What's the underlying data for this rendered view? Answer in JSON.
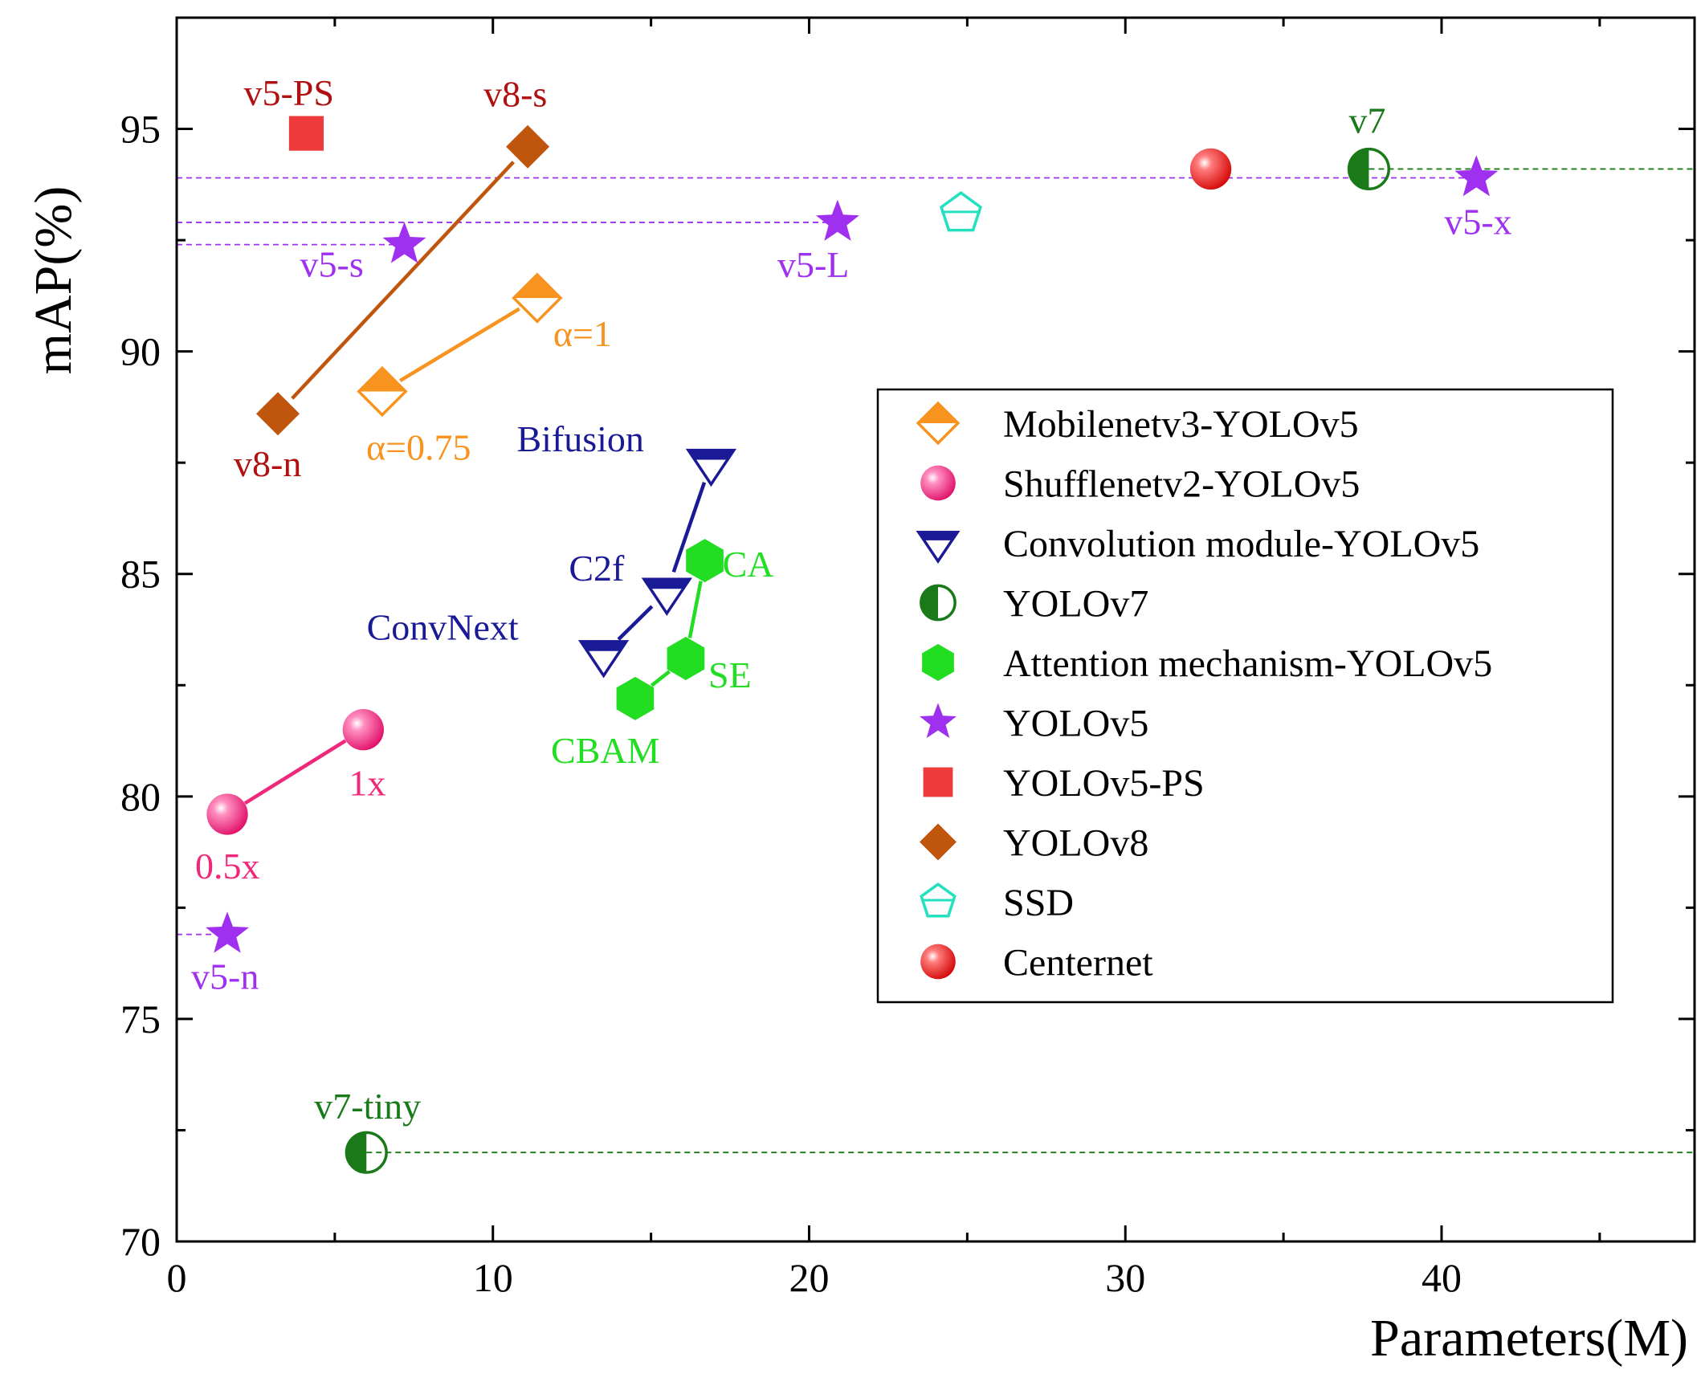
{
  "chart_data": {
    "type": "scatter",
    "title": "",
    "xlabel": "Parameters(M)",
    "ylabel": "mAP(%)",
    "xlim": [
      0,
      48
    ],
    "ylim": [
      70,
      97.5
    ],
    "x_ticks": [
      0,
      10,
      20,
      30,
      40
    ],
    "y_ticks": [
      70,
      75,
      80,
      85,
      90,
      95
    ],
    "grid": false,
    "legend_position": "center-right",
    "colors": {
      "orange": "#f7931e",
      "pink": "#f0287a",
      "navy": "#1a1a96",
      "darkgreen": "#1a7a1a",
      "green": "#22dd22",
      "purple": "#a030f0",
      "red": "#ef3b3b",
      "brown": "#c0560e",
      "cyan": "#22e0c0",
      "centernet": "#e01818",
      "darkred": "#b01010"
    },
    "series": [
      {
        "name": "Mobilenetv3-YOLOv5",
        "marker": "half-diamond",
        "color": "#f7931e",
        "connected": true,
        "points": [
          {
            "x": 6.5,
            "y": 89.1,
            "label": "α=0.75"
          },
          {
            "x": 11.4,
            "y": 91.2,
            "label": "α=1"
          }
        ]
      },
      {
        "name": "Shufflenetv2-YOLOv5",
        "marker": "sphere",
        "color": "#f0287a",
        "connected": true,
        "points": [
          {
            "x": 1.6,
            "y": 79.6,
            "label": "0.5x"
          },
          {
            "x": 5.9,
            "y": 81.5,
            "label": "1x"
          }
        ]
      },
      {
        "name": "Convolution module-YOLOv5",
        "marker": "half-triangle-down",
        "color": "#1a1a96",
        "connected": true,
        "points": [
          {
            "x": 13.5,
            "y": 83.2,
            "label": "ConvNext"
          },
          {
            "x": 15.5,
            "y": 84.6,
            "label": "C2f"
          },
          {
            "x": 16.9,
            "y": 87.5,
            "label": "Bifusion"
          }
        ]
      },
      {
        "name": "YOLOv7",
        "marker": "half-circle",
        "color": "#1a7a1a",
        "connected": false,
        "points": [
          {
            "x": 6.0,
            "y": 72.0,
            "label": "v7-tiny"
          },
          {
            "x": 37.7,
            "y": 94.1,
            "label": "v7"
          }
        ]
      },
      {
        "name": "Attention mechanism-YOLOv5",
        "marker": "hexagon",
        "color": "#22dd22",
        "connected": true,
        "points": [
          {
            "x": 14.5,
            "y": 82.2,
            "label": "CBAM"
          },
          {
            "x": 16.1,
            "y": 83.1,
            "label": "SE"
          },
          {
            "x": 16.7,
            "y": 85.3,
            "label": "CA"
          }
        ]
      },
      {
        "name": "YOLOv5",
        "marker": "star",
        "color": "#a030f0",
        "connected": false,
        "points": [
          {
            "x": 1.6,
            "y": 76.9,
            "label": "v5-n"
          },
          {
            "x": 7.2,
            "y": 92.4,
            "label": "v5-s"
          },
          {
            "x": 20.9,
            "y": 92.9,
            "label": "v5-L"
          },
          {
            "x": 41.1,
            "y": 93.9,
            "label": "v5-x"
          }
        ]
      },
      {
        "name": "YOLOv5-PS",
        "marker": "square",
        "color": "#ef3b3b",
        "connected": false,
        "points": [
          {
            "x": 4.1,
            "y": 94.9,
            "label": "v5-PS"
          }
        ]
      },
      {
        "name": "YOLOv8",
        "marker": "diamond",
        "color": "#c0560e",
        "connected": true,
        "points": [
          {
            "x": 3.2,
            "y": 88.6,
            "label": "v8-n"
          },
          {
            "x": 11.1,
            "y": 94.6,
            "label": "v8-s"
          }
        ]
      },
      {
        "name": "SSD",
        "marker": "pentagon",
        "color": "#22e0c0",
        "connected": false,
        "points": [
          {
            "x": 24.8,
            "y": 93.1,
            "label": ""
          }
        ]
      },
      {
        "name": "Centernet",
        "marker": "sphere",
        "color": "#e01818",
        "connected": false,
        "points": [
          {
            "x": 32.7,
            "y": 94.1,
            "label": ""
          }
        ]
      }
    ],
    "reference_lines": [
      {
        "y": 93.9,
        "x_from": 0,
        "x_to": 41.1,
        "color": "#a030f0"
      },
      {
        "y": 92.9,
        "x_from": 0,
        "x_to": 20.9,
        "color": "#a030f0"
      },
      {
        "y": 92.4,
        "x_from": 0,
        "x_to": 7.2,
        "color": "#a030f0"
      },
      {
        "y": 76.9,
        "x_from": 0,
        "x_to": 1.6,
        "color": "#a030f0"
      },
      {
        "y": 94.1,
        "x_from": 37.7,
        "x_to": 48,
        "color": "#1a7a1a"
      },
      {
        "y": 72.0,
        "x_from": 6.0,
        "x_to": 48,
        "color": "#1a7a1a"
      }
    ]
  }
}
